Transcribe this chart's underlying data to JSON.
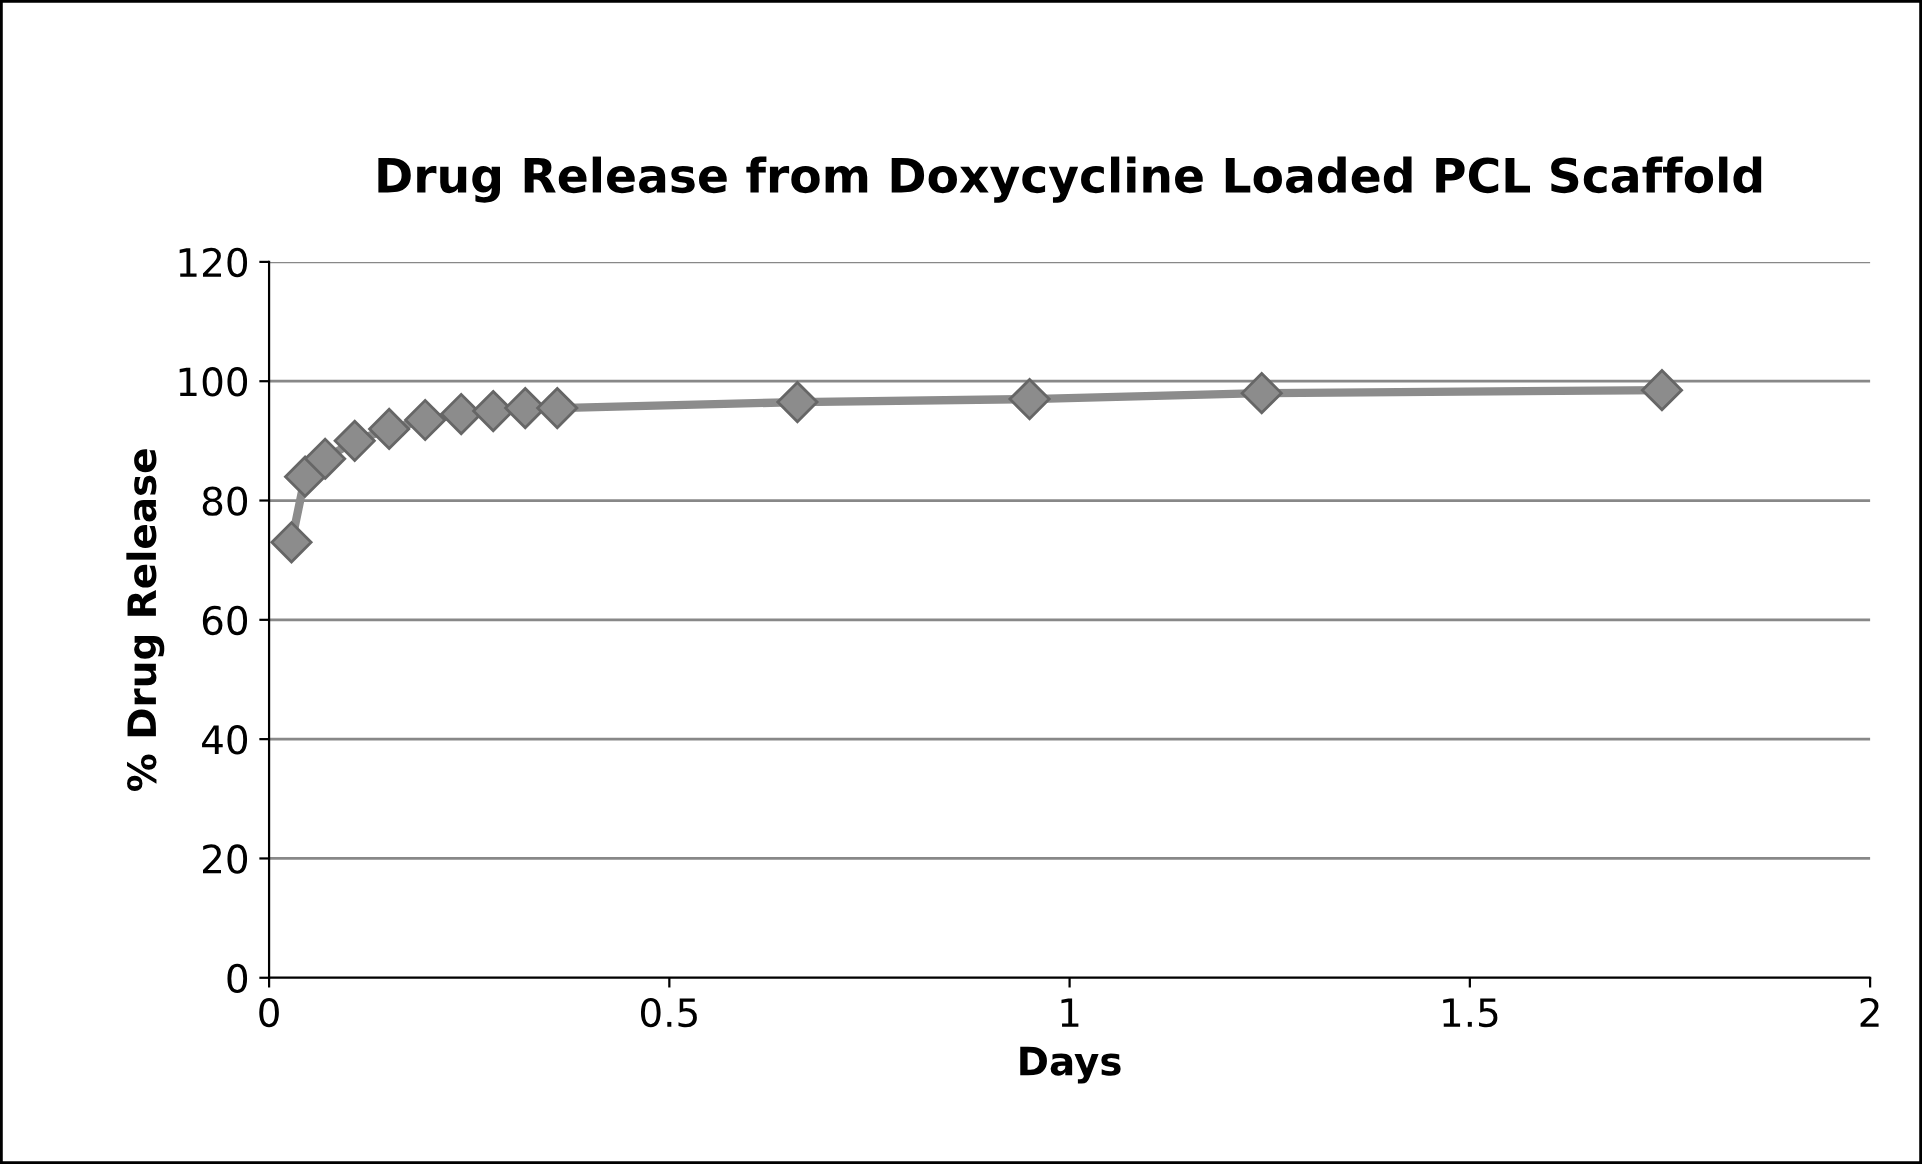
{
  "chart_data": {
    "type": "line",
    "title": "Drug Release from Doxycycline Loaded PCL Scaffold",
    "xlabel": "Days",
    "ylabel": "% Drug Release",
    "x": [
      0.028,
      0.045,
      0.07,
      0.107,
      0.15,
      0.195,
      0.24,
      0.28,
      0.32,
      0.36,
      0.66,
      0.95,
      1.24,
      1.74
    ],
    "series": [
      {
        "color": "#8c8c8c",
        "values": [
          73,
          84,
          87,
          90,
          92,
          93.5,
          94.5,
          95,
          95.5,
          95.5,
          96.5,
          97,
          98,
          98.5
        ]
      }
    ],
    "xlim": [
      0,
      2
    ],
    "xticks": [
      0,
      0.5,
      1,
      1.5,
      2
    ],
    "ylim": [
      0,
      120
    ],
    "yticks": [
      0,
      20,
      40,
      60,
      80,
      100,
      120
    ],
    "grid": "y",
    "marker": "diamond",
    "line_style": "solid"
  }
}
